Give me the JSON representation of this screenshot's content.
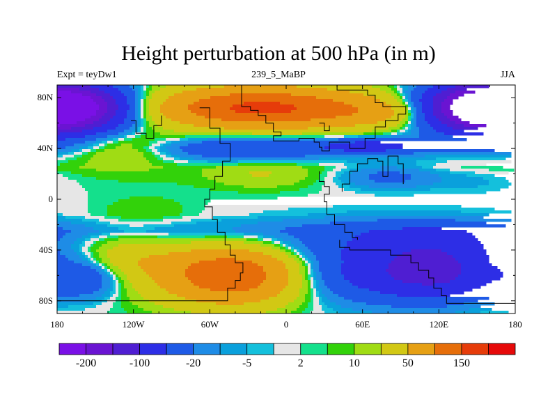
{
  "header": {
    "title": "Height perturbation at 500 hPa (in m)",
    "left": "Expt = teyDw1",
    "center": "239_5_MaBP",
    "right": "JJA"
  },
  "chart_data": {
    "type": "heatmap",
    "title": "Height perturbation at 500 hPa (in m)",
    "xlim": [
      -180,
      180
    ],
    "ylim": [
      -90,
      90
    ],
    "x_ticks": [
      {
        "v": -180,
        "label": "180"
      },
      {
        "v": -120,
        "label": "120W"
      },
      {
        "v": -60,
        "label": "60W"
      },
      {
        "v": 0,
        "label": "0"
      },
      {
        "v": 60,
        "label": "60E"
      },
      {
        "v": 120,
        "label": "120E"
      },
      {
        "v": 180,
        "label": "180"
      }
    ],
    "y_ticks": [
      {
        "v": 80,
        "label": "80N"
      },
      {
        "v": 40,
        "label": "40N"
      },
      {
        "v": 0,
        "label": "0"
      },
      {
        "v": -40,
        "label": "40S"
      },
      {
        "v": -80,
        "label": "80S"
      }
    ],
    "levels": [
      -200,
      -150,
      -100,
      -50,
      -20,
      -10,
      -5,
      -2,
      2,
      5,
      10,
      20,
      50,
      100,
      150,
      200
    ],
    "colors": [
      "#7a10e6",
      "#6a14d2",
      "#4f1ed2",
      "#2d2ee6",
      "#1e5ae6",
      "#1e8ce6",
      "#0aa0dc",
      "#14c0dc",
      "#e6e6e6",
      "#14e08c",
      "#32d20a",
      "#a0dc14",
      "#d2c814",
      "#e6a014",
      "#e66e0a",
      "#e63c0a",
      "#e60a0a"
    ],
    "colorbar_labels": [
      {
        "after_level": -200,
        "label": "-200"
      },
      {
        "after_level": -100,
        "label": "-100"
      },
      {
        "after_level": -20,
        "label": "-20"
      },
      {
        "after_level": -5,
        "label": "-5"
      },
      {
        "after_level": 2,
        "label": "2"
      },
      {
        "after_level": 10,
        "label": "10"
      },
      {
        "after_level": 50,
        "label": "50"
      },
      {
        "after_level": 150,
        "label": "150"
      }
    ],
    "bands": [
      {
        "lat": 90,
        "v": 6
      },
      {
        "lat": 70,
        "v": 14
      },
      {
        "lat": 50,
        "v": 0
      },
      {
        "lat": 40,
        "v": -12
      },
      {
        "lat": 25,
        "v": 8
      },
      {
        "lat": 5,
        "v": 2
      },
      {
        "lat": -12,
        "v": -2
      },
      {
        "lat": -25,
        "v": -18
      },
      {
        "lat": -50,
        "v": 20
      },
      {
        "lat": -70,
        "v": 12
      },
      {
        "lat": -90,
        "v": 4
      }
    ],
    "features": [
      {
        "lon": -170,
        "lat": 72,
        "rx": 45,
        "ry": 18,
        "a": -240
      },
      {
        "lon": 150,
        "lat": 72,
        "rx": 45,
        "ry": 18,
        "a": -240
      },
      {
        "lon": -20,
        "lat": 72,
        "rx": 80,
        "ry": 16,
        "a": 150
      },
      {
        "lon": 80,
        "lat": 68,
        "rx": 50,
        "ry": 12,
        "a": 40
      },
      {
        "lon": -30,
        "lat": 40,
        "rx": 60,
        "ry": 10,
        "a": -40
      },
      {
        "lon": 65,
        "lat": 42,
        "rx": 40,
        "ry": 6,
        "a": -60
      },
      {
        "lon": 80,
        "lat": 18,
        "rx": 40,
        "ry": 10,
        "a": -30
      },
      {
        "lon": 150,
        "lat": 15,
        "rx": 40,
        "ry": 10,
        "a": -10
      },
      {
        "lon": -130,
        "lat": 40,
        "rx": 40,
        "ry": 12,
        "a": 30
      },
      {
        "lon": -20,
        "lat": 20,
        "rx": 40,
        "ry": 12,
        "a": 15
      },
      {
        "lon": -160,
        "lat": -60,
        "rx": 35,
        "ry": 18,
        "a": -60
      },
      {
        "lon": -40,
        "lat": -60,
        "rx": 55,
        "ry": 22,
        "a": 140
      },
      {
        "lon": -130,
        "lat": -45,
        "rx": 40,
        "ry": 20,
        "a": 30
      },
      {
        "lon": 60,
        "lat": -55,
        "rx": 80,
        "ry": 25,
        "a": -80
      },
      {
        "lon": 120,
        "lat": -55,
        "rx": 45,
        "ry": 22,
        "a": -100
      },
      {
        "lon": 110,
        "lat": -30,
        "rx": 60,
        "ry": 12,
        "a": -20
      },
      {
        "lon": -110,
        "lat": -10,
        "rx": 40,
        "ry": 12,
        "a": 10
      }
    ],
    "coastlines": [
      [
        [
          -35,
          92
        ],
        [
          -35,
          73
        ],
        [
          -28,
          73
        ],
        [
          -28,
          70
        ],
        [
          -22,
          70
        ],
        [
          -22,
          66
        ],
        [
          -16,
          66
        ],
        [
          -16,
          60
        ],
        [
          -10,
          60
        ],
        [
          -10,
          53
        ],
        [
          -4,
          53
        ],
        [
          -4,
          50
        ],
        [
          -10,
          50
        ],
        [
          -10,
          46
        ],
        [
          10,
          46
        ],
        [
          10,
          48
        ],
        [
          22,
          48
        ],
        [
          22,
          45
        ],
        [
          26,
          45
        ],
        [
          26,
          41
        ],
        [
          28,
          41
        ],
        [
          28,
          38
        ],
        [
          34,
          38
        ],
        [
          34,
          45
        ],
        [
          50,
          45
        ],
        [
          50,
          40
        ],
        [
          62,
          40
        ],
        [
          62,
          48
        ],
        [
          70,
          48
        ],
        [
          70,
          57
        ],
        [
          78,
          57
        ],
        [
          78,
          62
        ],
        [
          88,
          62
        ],
        [
          88,
          67
        ],
        [
          94,
          67
        ],
        [
          94,
          73
        ],
        [
          76,
          73
        ],
        [
          76,
          76
        ],
        [
          70,
          76
        ],
        [
          70,
          82
        ],
        [
          64,
          82
        ],
        [
          64,
          86
        ],
        [
          40,
          86
        ],
        [
          40,
          92
        ]
      ],
      [
        [
          -68,
          72
        ],
        [
          -60,
          72
        ],
        [
          -60,
          56
        ],
        [
          -52,
          56
        ],
        [
          -52,
          44
        ],
        [
          -44,
          44
        ],
        [
          -44,
          30
        ],
        [
          -50,
          30
        ],
        [
          -50,
          18
        ],
        [
          -56,
          18
        ],
        [
          -56,
          8
        ],
        [
          -60,
          8
        ],
        [
          -60,
          0
        ],
        [
          -64,
          0
        ],
        [
          -64,
          -6
        ],
        [
          -58,
          -6
        ],
        [
          -58,
          -16
        ],
        [
          -54,
          -16
        ],
        [
          -54,
          -26
        ],
        [
          -48,
          -26
        ],
        [
          -48,
          -36
        ],
        [
          -44,
          -36
        ],
        [
          -44,
          -44
        ],
        [
          -40,
          -44
        ],
        [
          -40,
          -50
        ],
        [
          -34,
          -50
        ],
        [
          -34,
          -58
        ],
        [
          -36,
          -58
        ],
        [
          -36,
          -64
        ],
        [
          -40,
          -64
        ],
        [
          -40,
          -70
        ],
        [
          -46,
          -70
        ],
        [
          -46,
          -80
        ],
        [
          -180,
          -80
        ]
      ],
      [
        [
          26,
          22
        ],
        [
          26,
          14
        ],
        [
          30,
          14
        ],
        [
          30,
          10
        ],
        [
          34,
          10
        ],
        [
          34,
          4
        ],
        [
          30,
          4
        ],
        [
          30,
          -2
        ],
        [
          32,
          -2
        ],
        [
          32,
          -12
        ],
        [
          38,
          -12
        ],
        [
          38,
          -20
        ],
        [
          46,
          -20
        ],
        [
          46,
          -26
        ],
        [
          52,
          -26
        ],
        [
          52,
          -30
        ],
        [
          56,
          -30
        ],
        [
          56,
          -32
        ]
      ],
      [
        [
          42,
          -32
        ],
        [
          42,
          -38
        ],
        [
          50,
          -38
        ],
        [
          50,
          -40
        ],
        [
          82,
          -40
        ],
        [
          82,
          -44
        ],
        [
          98,
          -44
        ],
        [
          98,
          -50
        ],
        [
          104,
          -50
        ],
        [
          104,
          -56
        ],
        [
          112,
          -56
        ],
        [
          112,
          -62
        ],
        [
          116,
          -62
        ],
        [
          116,
          -70
        ],
        [
          122,
          -70
        ],
        [
          122,
          -76
        ],
        [
          126,
          -76
        ],
        [
          126,
          -82
        ],
        [
          180,
          -82
        ]
      ],
      [
        [
          44,
          6
        ],
        [
          44,
          12
        ],
        [
          50,
          12
        ],
        [
          50,
          22
        ],
        [
          56,
          22
        ],
        [
          56,
          28
        ],
        [
          64,
          28
        ],
        [
          64,
          32
        ],
        [
          72,
          32
        ],
        [
          72,
          30
        ],
        [
          76,
          30
        ],
        [
          76,
          18
        ],
        [
          80,
          18
        ],
        [
          80,
          34
        ],
        [
          88,
          34
        ],
        [
          88,
          28
        ],
        [
          92,
          28
        ],
        [
          92,
          12
        ]
      ],
      [
        [
          -122,
          62
        ],
        [
          -118,
          62
        ],
        [
          -118,
          52
        ],
        [
          -110,
          52
        ],
        [
          -110,
          48
        ],
        [
          -104,
          48
        ],
        [
          -104,
          58
        ],
        [
          -98,
          58
        ],
        [
          -98,
          66
        ]
      ],
      [
        [
          26,
          60
        ],
        [
          30,
          60
        ],
        [
          30,
          54
        ],
        [
          34,
          54
        ],
        [
          34,
          58
        ]
      ]
    ]
  }
}
